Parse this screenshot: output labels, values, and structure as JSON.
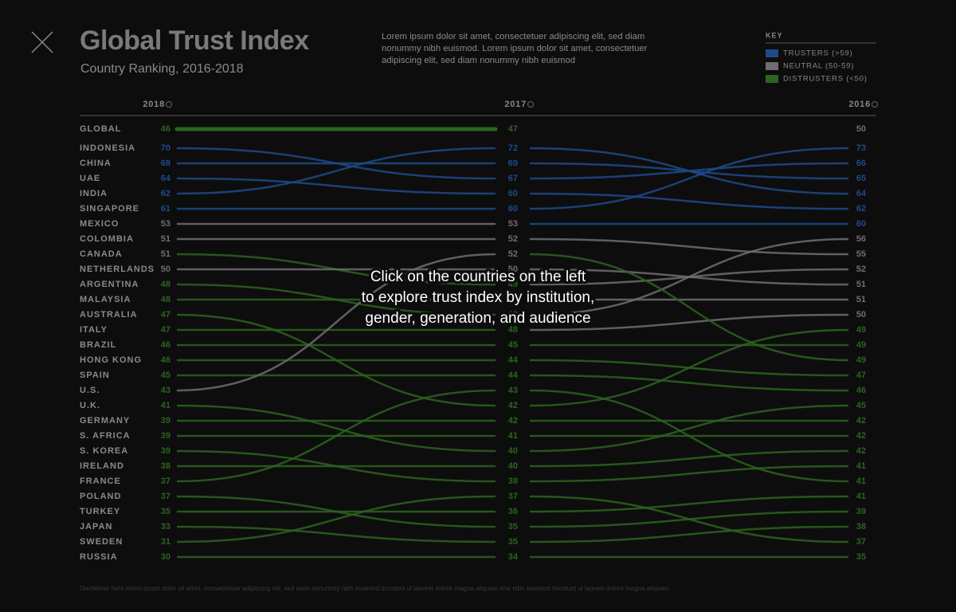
{
  "header": {
    "title": "Global Trust Index",
    "subtitle": "Country Ranking, 2016-2018",
    "description": "Lorem ipsum dolor sit amet, consectetuer adipiscing elit, sed diam nonummy nibh euismod. Lorem ipsum dolor sit amet, consectetuer adipiscing elit, sed diam nonummy nibh euismod"
  },
  "key": {
    "title": "KEY",
    "items": [
      {
        "label": "TRUSTERS (>59)",
        "color": "#1f4a8a",
        "above": 59
      },
      {
        "label": "NEUTRAL (50-59)",
        "color": "#6e6e6e",
        "above": 49
      },
      {
        "label": "DISTRUSTERS (<50)",
        "color": "#2b6420"
      }
    ]
  },
  "chart_data": {
    "type": "bump",
    "global": {
      "label": "GLOBAL",
      "values": [
        46,
        47,
        50
      ]
    },
    "categories": [
      "INDONESIA",
      "CHINA",
      "UAE",
      "INDIA",
      "SINGAPORE",
      "MEXICO",
      "COLOMBIA",
      "CANADA",
      "NETHERLANDS",
      "ARGENTINA",
      "MALAYSIA",
      "AUSTRALIA",
      "ITALY",
      "BRAZIL",
      "HONG KONG",
      "SPAIN",
      "U.S.",
      "U.K.",
      "GERMANY",
      "S. AFRICA",
      "S. KOREA",
      "IRELAND",
      "FRANCE",
      "POLAND",
      "TURKEY",
      "JAPAN",
      "SWEDEN",
      "RUSSIA"
    ],
    "series": [
      {
        "name": "2018",
        "values": [
          70,
          68,
          64,
          62,
          61,
          53,
          51,
          51,
          50,
          48,
          48,
          47,
          47,
          46,
          46,
          45,
          43,
          41,
          39,
          39,
          39,
          38,
          37,
          37,
          35,
          33,
          31,
          30
        ]
      },
      {
        "name": "2017",
        "values": [
          67,
          69,
          60,
          72,
          60,
          53,
          52,
          49,
          50,
          48,
          49,
          42,
          48,
          45,
          44,
          44,
          52,
          40,
          42,
          41,
          38,
          40,
          43,
          35,
          36,
          35,
          37,
          34
        ]
      },
      {
        "name": "2016",
        "values": [
          66,
          65,
          62,
          64,
          73,
          60,
          55,
          52,
          51,
          56,
          51,
          49,
          50,
          49,
          47,
          46,
          49,
          45,
          42,
          42,
          41,
          42,
          41,
          39,
          41,
          38,
          37,
          35
        ]
      }
    ]
  },
  "overlay": [
    "Click on the countries on the left",
    "to explore trust index by institution,",
    "gender, generation, and audience"
  ],
  "footer": {
    "disclaimer": "Disclaimer here lorem ipsum dolor sit amet, consectetuer adipiscing elit, sed diam nonummy nibh euismod tincidunt ut laoreet dolore magna aliquam erat nibh euismod tincidunt ut laoreet dolore magna aliquam"
  }
}
